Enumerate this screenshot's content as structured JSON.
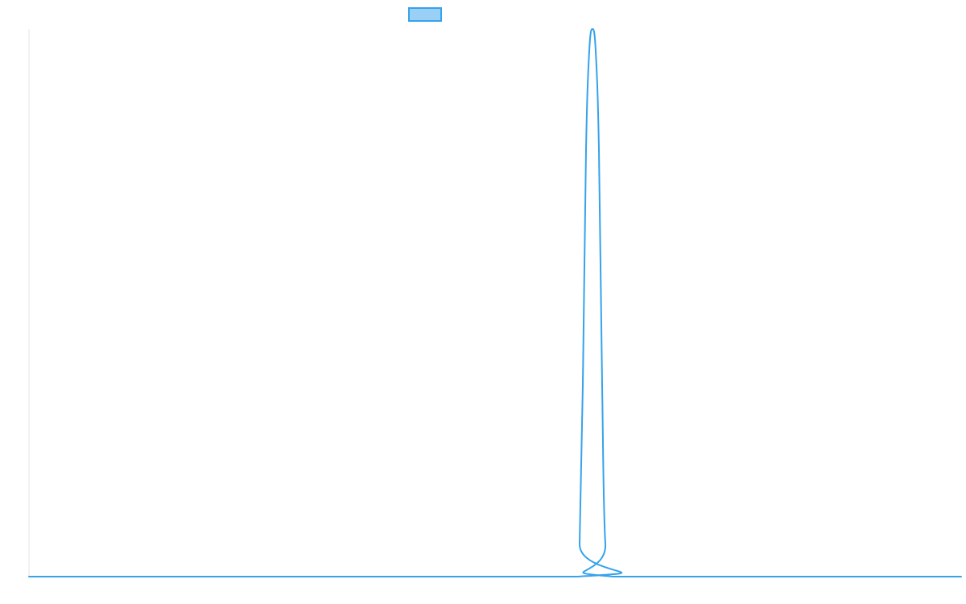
{
  "chart_data": {
    "type": "line",
    "title": "",
    "xlabel": "",
    "ylabel": "",
    "grid": false,
    "legend": {
      "placement": "top-center",
      "entries": [
        {
          "label": "",
          "color": "#36a2eb",
          "fill": "#9ad0f5"
        }
      ]
    },
    "xlim": [
      0,
      1158
    ],
    "ylim": [
      0,
      1
    ],
    "series": [
      {
        "color": "#36a2eb",
        "points": [
          [
            0,
            0
          ],
          [
            681,
            0
          ],
          [
            684,
            0.06
          ],
          [
            688,
            0.35
          ],
          [
            692,
            0.78
          ],
          [
            696,
            0.96
          ],
          [
            700,
            1.0
          ],
          [
            704,
            0.96
          ],
          [
            708,
            0.78
          ],
          [
            712,
            0.35
          ],
          [
            716,
            0.06
          ],
          [
            726,
            0
          ],
          [
            1158,
            0
          ]
        ]
      }
    ]
  }
}
